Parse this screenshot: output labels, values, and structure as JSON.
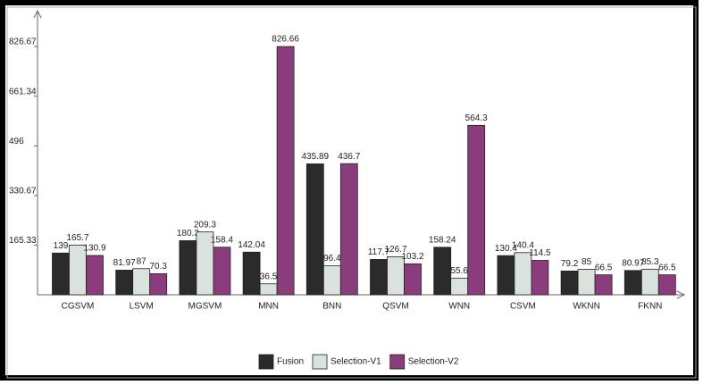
{
  "chart_data": {
    "type": "bar",
    "categories": [
      "CGSVM",
      "LSVM",
      "MGSVM",
      "MNN",
      "BNN",
      "QSVM",
      "WNN",
      "CSVM",
      "WKNN",
      "FKNN"
    ],
    "series": [
      {
        "name": "Fusion",
        "color": "#2b2b2b",
        "values": [
          139,
          81.97,
          180.3,
          142.04,
          435.89,
          117.7,
          158.24,
          130.4,
          79.2,
          80.97
        ]
      },
      {
        "name": "Selection-V1",
        "color": "#d9e2dd",
        "values": [
          165.7,
          87,
          209.3,
          36.5,
          96.4,
          126.7,
          55.6,
          140.4,
          85,
          85.3
        ]
      },
      {
        "name": "Selection-V2",
        "color": "#8a3c7c",
        "values": [
          130.9,
          70.3,
          158.4,
          826.66,
          436.7,
          103.2,
          564.3,
          114.5,
          66.5,
          66.5
        ]
      }
    ],
    "ylim": [
      0,
      940
    ],
    "yticks": [
      165.33,
      330.67,
      496,
      661.34,
      826.67
    ],
    "grid": false,
    "legend": "bottom"
  }
}
